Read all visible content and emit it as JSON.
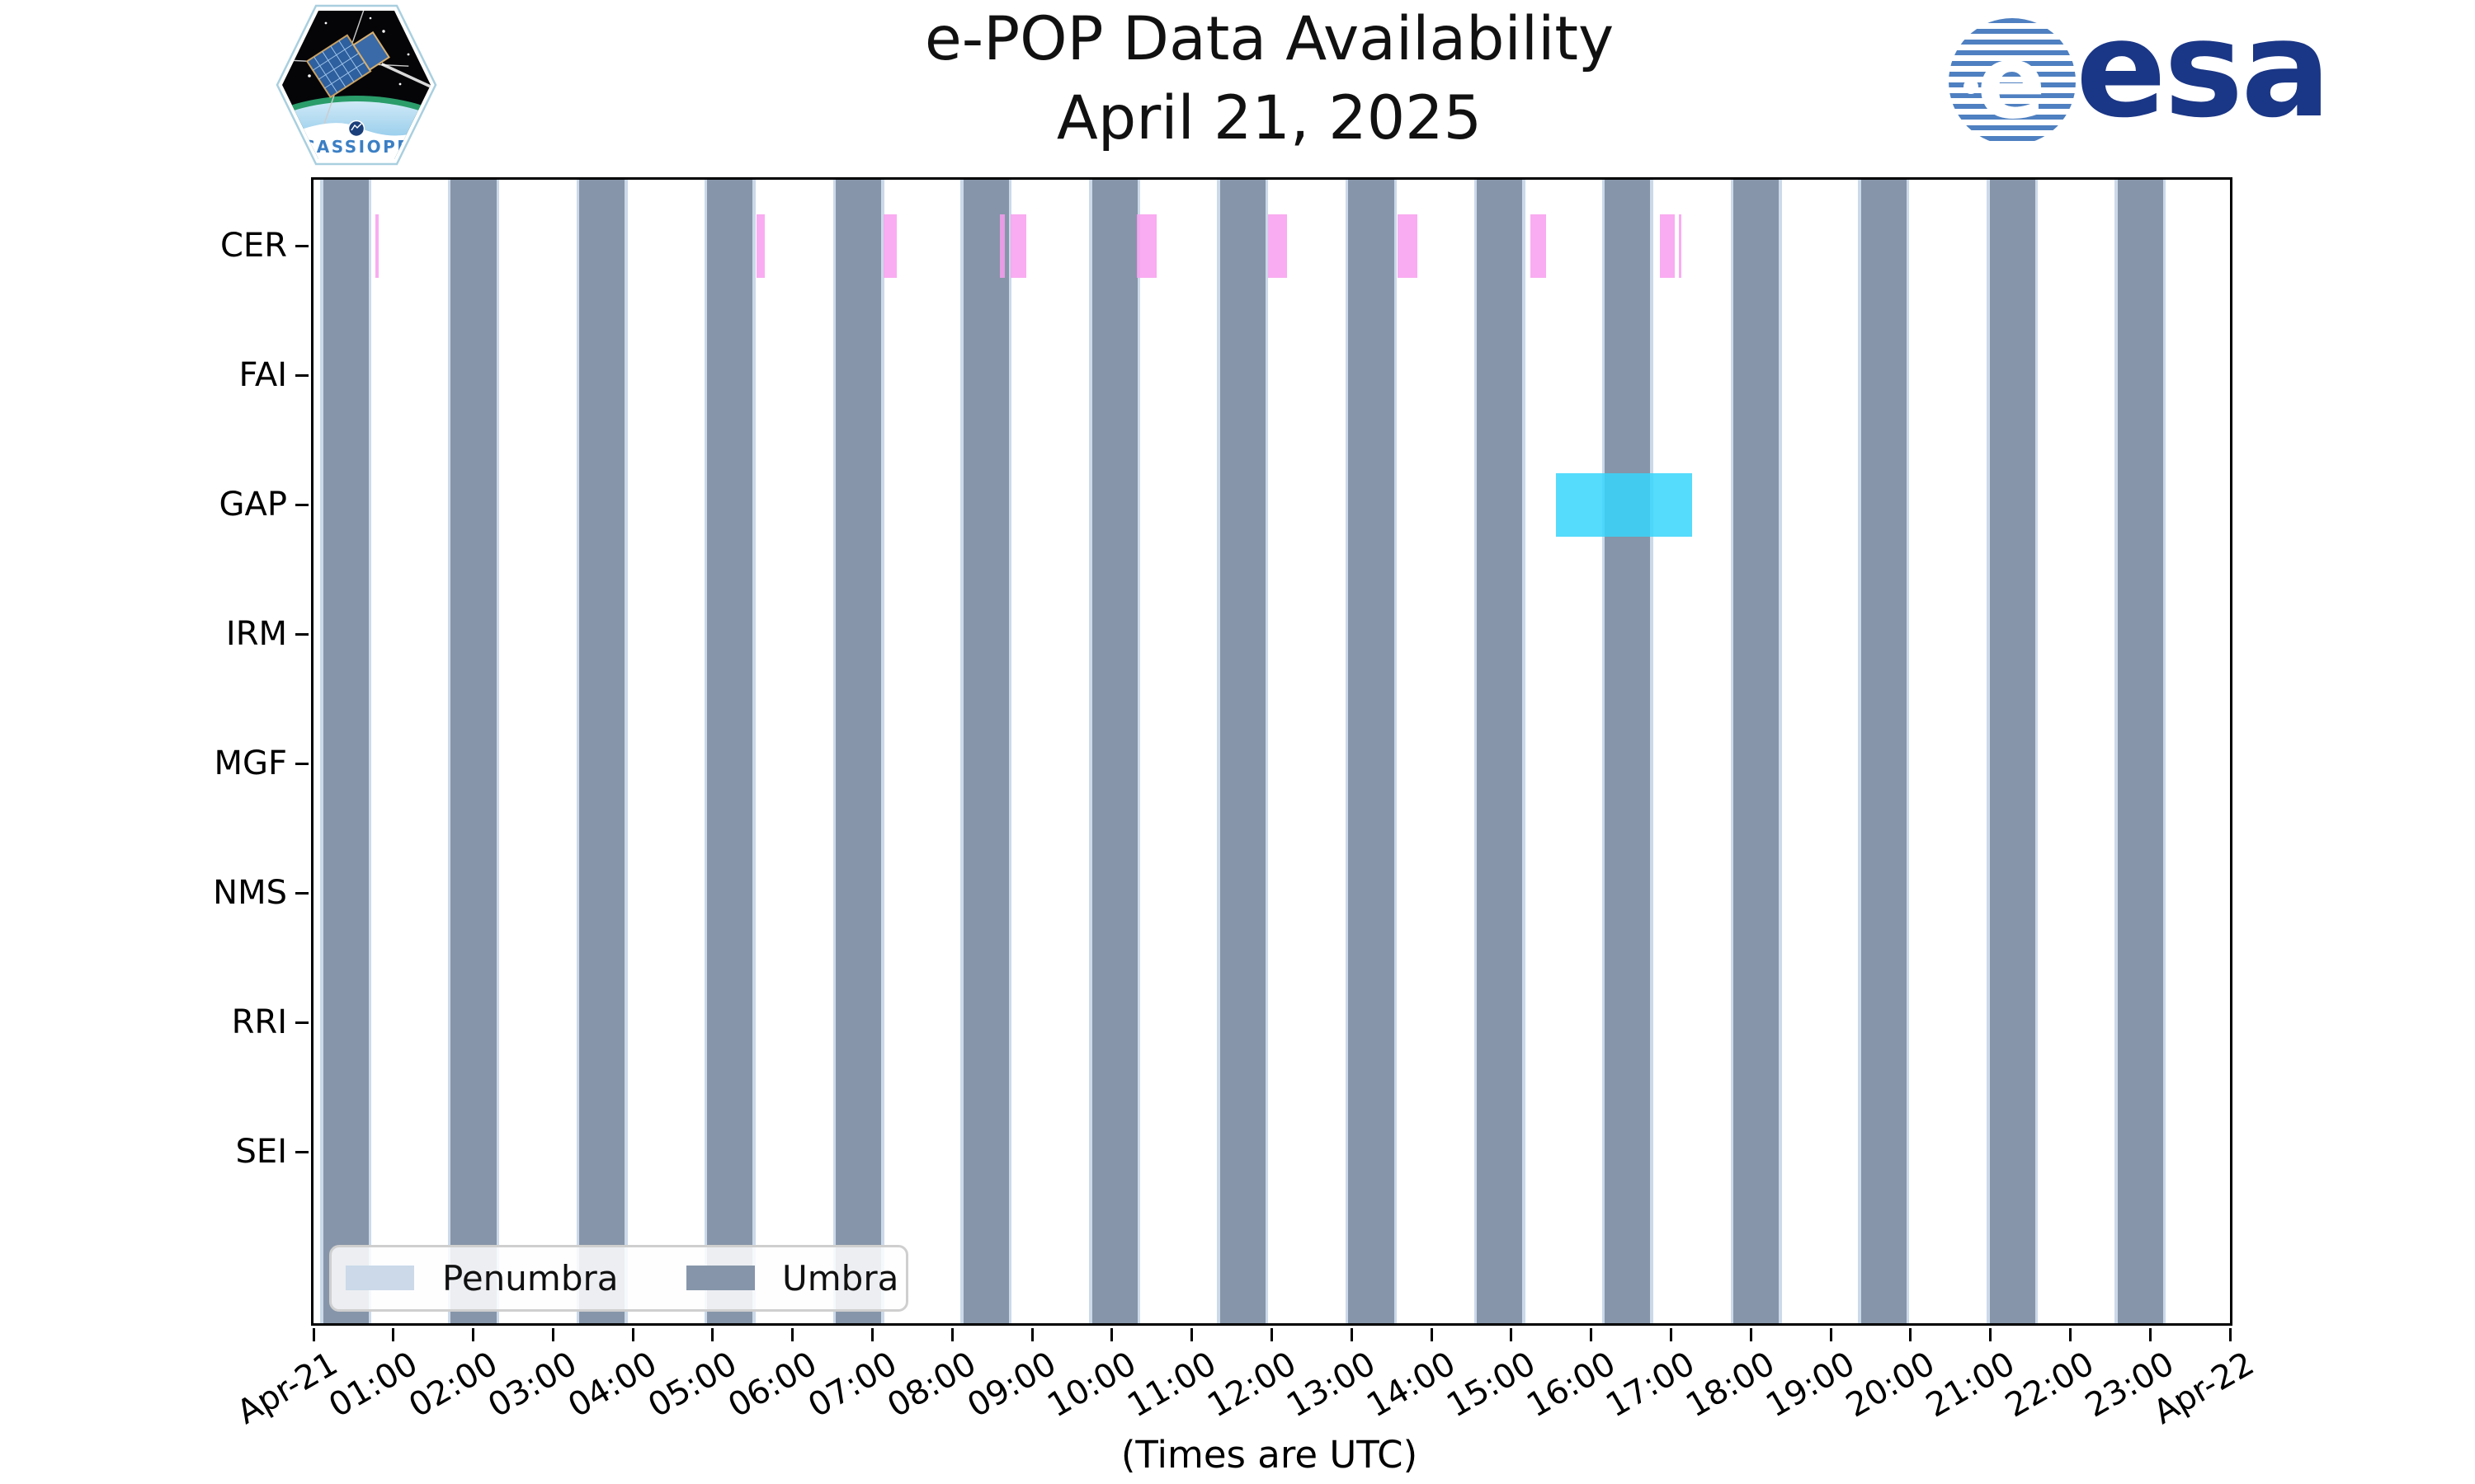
{
  "title": {
    "line1": "e-POP Data Availability",
    "line2": "April 21, 2025"
  },
  "xaxis_title": "(Times are UTC)",
  "legend": {
    "entries": [
      {
        "label": "Penumbra",
        "color": "#CBD9E9"
      },
      {
        "label": "Umbra",
        "color": "#8695A9"
      }
    ]
  },
  "logos": {
    "cassiope_text": "CASSIOPE",
    "esa_text": "esa",
    "esa_e": "e"
  },
  "chart_data": {
    "type": "broken-bar timeline (gantt)",
    "title": "e-POP Data Availability April 21, 2025",
    "rows": [
      "CER",
      "FAI",
      "GAP",
      "IRM",
      "MGF",
      "NMS",
      "RRI",
      "SEI"
    ],
    "x_ticks": [
      "Apr-21",
      "01:00",
      "02:00",
      "03:00",
      "04:00",
      "05:00",
      "06:00",
      "07:00",
      "08:00",
      "09:00",
      "10:00",
      "11:00",
      "12:00",
      "13:00",
      "14:00",
      "15:00",
      "16:00",
      "17:00",
      "18:00",
      "19:00",
      "20:00",
      "21:00",
      "22:00",
      "23:00",
      "Apr-22"
    ],
    "x_range_hours": [
      0,
      24
    ],
    "xlabel": "(Times are UTC)",
    "grid": false,
    "legend_position": "lower left",
    "umbra_intervals_hours": [
      [
        0.12,
        0.69
      ],
      [
        1.72,
        2.29
      ],
      [
        3.33,
        3.9
      ],
      [
        4.93,
        5.5
      ],
      [
        6.54,
        7.11
      ],
      [
        8.14,
        8.71
      ],
      [
        9.75,
        10.32
      ],
      [
        11.35,
        11.92
      ],
      [
        12.96,
        13.53
      ],
      [
        14.57,
        15.14
      ],
      [
        16.17,
        16.74
      ],
      [
        17.78,
        18.35
      ],
      [
        19.38,
        19.95
      ],
      [
        20.99,
        21.56
      ],
      [
        22.59,
        23.16
      ]
    ],
    "penumbra_edge_width_hours": 0.035,
    "penumbra_intervals_hours": [
      [
        0.085,
        0.12
      ],
      [
        0.69,
        0.725
      ],
      [
        1.685,
        1.72
      ],
      [
        2.29,
        2.325
      ],
      [
        3.295,
        3.33
      ],
      [
        3.9,
        3.935
      ],
      [
        4.895,
        4.93
      ],
      [
        5.5,
        5.535
      ],
      [
        6.505,
        6.54
      ],
      [
        7.11,
        7.145
      ],
      [
        8.105,
        8.14
      ],
      [
        8.71,
        8.745
      ],
      [
        9.715,
        9.75
      ],
      [
        10.32,
        10.355
      ],
      [
        11.315,
        11.35
      ],
      [
        11.92,
        11.955
      ],
      [
        12.925,
        12.96
      ],
      [
        13.53,
        13.565
      ],
      [
        14.535,
        14.57
      ],
      [
        15.14,
        15.175
      ],
      [
        16.135,
        16.17
      ],
      [
        16.74,
        16.775
      ],
      [
        17.745,
        17.78
      ],
      [
        18.35,
        18.385
      ],
      [
        19.345,
        19.38
      ],
      [
        19.95,
        19.985
      ],
      [
        20.955,
        20.99
      ],
      [
        21.56,
        21.595
      ],
      [
        22.555,
        22.59
      ],
      [
        23.16,
        23.195
      ]
    ],
    "data_bars": [
      {
        "row": "CER",
        "series_name": "CER availability",
        "color": "rgba(248,158,238,0.85)",
        "color_name": "violet",
        "intervals_hours": [
          [
            0.77,
            0.82
          ],
          [
            5.55,
            5.65
          ],
          [
            7.14,
            7.3
          ],
          [
            8.6,
            8.66
          ],
          [
            8.73,
            8.93
          ],
          [
            10.31,
            10.56
          ],
          [
            11.95,
            12.19
          ],
          [
            13.58,
            13.82
          ],
          [
            15.24,
            15.44
          ],
          [
            16.86,
            17.05
          ],
          [
            17.1,
            17.13
          ]
        ]
      },
      {
        "row": "GAP",
        "series_name": "GAP availability",
        "color": "rgba(55,213,252,0.85)",
        "color_name": "cyan",
        "intervals_hours": [
          [
            15.56,
            17.26
          ]
        ]
      }
    ],
    "colors": {
      "umbra": "#8695A9",
      "penumbra": "#CBD9E9",
      "cer_bars": "rgba(248,158,238,0.85)",
      "gap_bar": "rgba(55,213,252,0.85)",
      "axis": "#000000",
      "background": "#ffffff"
    }
  }
}
